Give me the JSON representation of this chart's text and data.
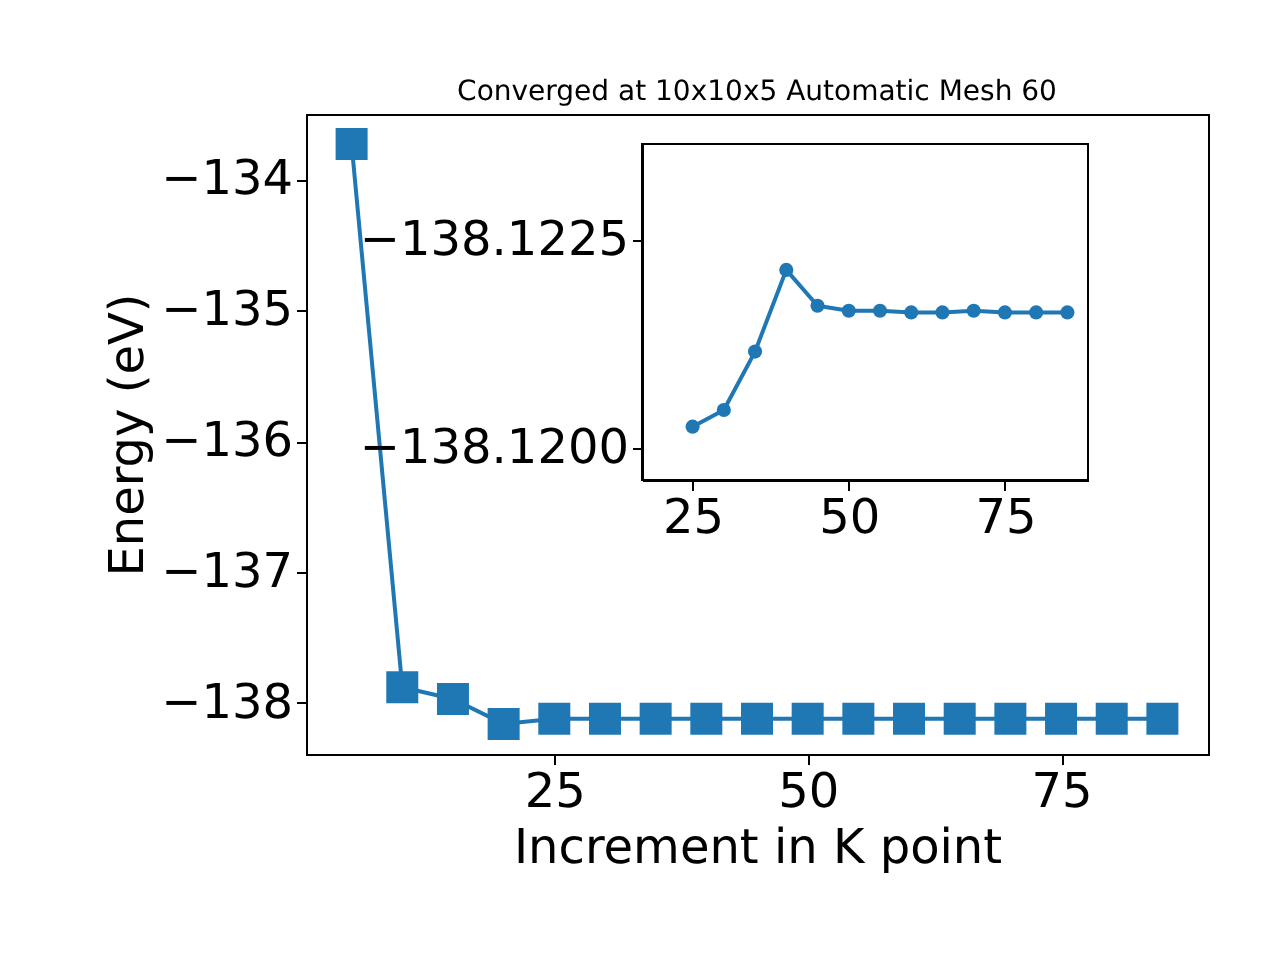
{
  "chart_data": [
    {
      "type": "line",
      "title": "Converged at 10x10x5 Automatic Mesh 60",
      "xlabel": "Increment in K point",
      "ylabel": "Energy (eV)",
      "x": [
        5,
        10,
        15,
        20,
        25,
        30,
        35,
        40,
        45,
        50,
        55,
        60,
        65,
        70,
        75,
        80,
        85
      ],
      "series": [
        {
          "color": "#1f77b4",
          "values": [
            -133.73,
            -137.88,
            -137.97,
            -138.16,
            -138.12,
            -138.12,
            -138.12,
            -138.12,
            -138.12,
            -138.12,
            -138.12,
            -138.12,
            -138.12,
            -138.12,
            -138.12,
            -138.12,
            -138.12
          ]
        }
      ],
      "xlim": [
        0.5,
        89.5
      ],
      "ylim": [
        -138.39,
        -133.5
      ],
      "xticks": [
        25,
        50,
        75
      ],
      "yticks": [
        {
          "value": -138,
          "label": "−138"
        },
        {
          "value": -137,
          "label": "−137"
        },
        {
          "value": -136,
          "label": "−136"
        },
        {
          "value": -135,
          "label": "−135"
        },
        {
          "value": -134,
          "label": "−134"
        }
      ],
      "marker": "square",
      "grid": false
    },
    {
      "type": "line",
      "x": [
        25,
        30,
        35,
        40,
        45,
        50,
        55,
        60,
        65,
        70,
        75,
        80,
        85
      ],
      "series": [
        {
          "color": "#1f77b4",
          "values": [
            -138.12026,
            -138.12046,
            -138.12116,
            -138.12214,
            -138.12171,
            -138.12165,
            -138.12165,
            -138.12163,
            -138.12163,
            -138.12165,
            -138.12163,
            -138.12163,
            -138.12163
          ]
        }
      ],
      "xlim": [
        16.9,
        88.3
      ],
      "ylim": [
        -138.11962,
        -138.12365
      ],
      "xticks": [
        25,
        50,
        75
      ],
      "yticks": [
        {
          "value": -138.12,
          "label": "−138.1200"
        },
        {
          "value": -138.1225,
          "label": "−138.1225"
        }
      ],
      "marker": "circle",
      "grid": false
    }
  ]
}
